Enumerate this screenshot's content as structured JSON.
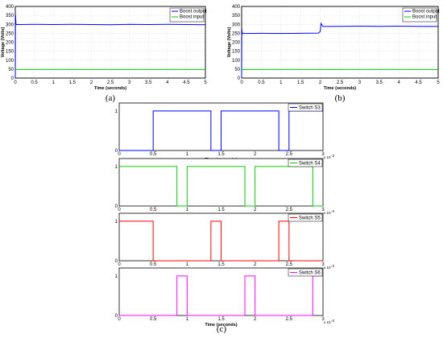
{
  "chart_data": [
    {
      "type": "line",
      "caption": "(a)",
      "xlabel": "Time (seconds)",
      "ylabel": "Voltage (Volts)",
      "xlim": [
        0,
        5
      ],
      "ylim": [
        0,
        400
      ],
      "xticks": [
        "0",
        "0.5",
        "1",
        "1.5",
        "2",
        "2.5",
        "3",
        "3.5",
        "4",
        "4.5",
        "5"
      ],
      "yticks": [
        "0",
        "50",
        "100",
        "150",
        "200",
        "250",
        "300",
        "350",
        "400"
      ],
      "grid": true,
      "legend": "top-right",
      "series": [
        {
          "name": "Boost output",
          "color": "#0000ff",
          "x": [
            0,
            0.005,
            0.01,
            0.02,
            0.04,
            0.08,
            0.1,
            0.5,
            1.0,
            1.5,
            2.0,
            2.5,
            3.0,
            3.5,
            4.0,
            4.5,
            5.0
          ],
          "y": [
            0,
            355,
            330,
            300,
            298,
            300,
            299,
            300,
            299,
            300,
            299,
            298,
            300,
            299,
            300,
            299,
            298
          ]
        },
        {
          "name": "Boost input",
          "color": "#00cc00",
          "x": [
            0,
            5
          ],
          "y": [
            48,
            48
          ]
        }
      ]
    },
    {
      "type": "line",
      "caption": "(b)",
      "xlabel": "Time (seconds)",
      "ylabel": "Voltage (Volts)",
      "xlim": [
        0,
        5
      ],
      "ylim": [
        0,
        400
      ],
      "xticks": [
        "0",
        "0.5",
        "1",
        "1.5",
        "2",
        "2.5",
        "3",
        "3.5",
        "4",
        "4.5",
        "5"
      ],
      "yticks": [
        "0",
        "50",
        "100",
        "150",
        "200",
        "250",
        "300",
        "350",
        "400"
      ],
      "grid": true,
      "legend": "top-right",
      "series": [
        {
          "name": "Boost output",
          "color": "#0000ff",
          "x": [
            0,
            0.005,
            0.01,
            0.03,
            0.06,
            0.1,
            0.5,
            1.0,
            1.5,
            1.95,
            2.0,
            2.02,
            2.06,
            2.1,
            2.5,
            3.0,
            3.5,
            4.0,
            4.5,
            5.0
          ],
          "y": [
            0,
            275,
            255,
            248,
            250,
            249,
            250,
            249,
            250,
            251,
            260,
            305,
            290,
            288,
            289,
            290,
            289,
            290,
            289,
            288
          ]
        },
        {
          "name": "Boost input",
          "color": "#00cc00",
          "x": [
            0,
            5
          ],
          "y": [
            48,
            48
          ]
        }
      ]
    },
    {
      "type": "line",
      "caption": "(c)",
      "xlabel": "Time (seconds)",
      "exponent": "x 10",
      "exponent_power": "-3",
      "xlim": [
        0,
        3
      ],
      "ylim": [
        0,
        1.2
      ],
      "xticks": [
        "0",
        "0.5",
        "1",
        "1.5",
        "2",
        "2.5",
        "3"
      ],
      "yticks": [
        "0",
        "1"
      ],
      "panels": [
        {
          "name": "Switch S3",
          "color": "#0000ff",
          "x": [
            0,
            0.5,
            0.5,
            1.35,
            1.35,
            1.5,
            1.5,
            2.35,
            2.35,
            2.5,
            2.5,
            3.0
          ],
          "y": [
            0,
            0,
            1,
            1,
            0,
            0,
            1,
            1,
            0,
            0,
            1,
            1
          ]
        },
        {
          "name": "Switch S4",
          "color": "#00cc00",
          "x": [
            0,
            0.85,
            0.85,
            1.0,
            1.0,
            1.85,
            1.85,
            2.0,
            2.0,
            2.85,
            2.85,
            3.0
          ],
          "y": [
            1,
            1,
            0,
            0,
            1,
            1,
            0,
            0,
            1,
            1,
            0,
            0
          ]
        },
        {
          "name": "Switch S5",
          "color": "#ff0000",
          "x": [
            0,
            0.5,
            0.5,
            1.35,
            1.35,
            1.5,
            1.5,
            2.35,
            2.35,
            2.5,
            2.5,
            3.0
          ],
          "y": [
            1,
            1,
            0,
            0,
            1,
            1,
            0,
            0,
            1,
            1,
            0,
            0
          ]
        },
        {
          "name": "Switch S6",
          "color": "#ff00ff",
          "x": [
            0,
            0.85,
            0.85,
            1.0,
            1.0,
            1.85,
            1.85,
            2.0,
            2.0,
            2.85,
            2.85,
            3.0
          ],
          "y": [
            0,
            0,
            1,
            1,
            0,
            0,
            1,
            1,
            0,
            0,
            1,
            1
          ]
        }
      ]
    }
  ]
}
